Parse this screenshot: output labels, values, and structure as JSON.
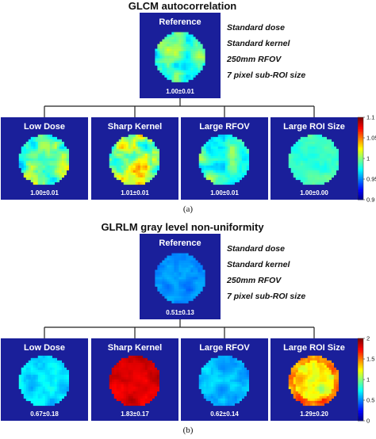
{
  "colors": {
    "panel_bg": "#1a1f9a",
    "connector": "#222222"
  },
  "figures": [
    {
      "title": "GLCM autocorrelation",
      "caption": "(a)",
      "reference": {
        "label": "Reference",
        "value": "1.00±0.01",
        "tone": 0.45,
        "variation": 0.18,
        "edge": 0.0
      },
      "conditions": [
        "Standard dose",
        "Standard kernel",
        "250mm RFOV",
        "7 pixel sub-ROI size"
      ],
      "panels": [
        {
          "label": "Low Dose",
          "value": "1.00±0.01",
          "tone": 0.47,
          "variation": 0.22,
          "edge": 0.0
        },
        {
          "label": "Sharp Kernel",
          "value": "1.01±0.01",
          "tone": 0.52,
          "variation": 0.28,
          "edge": 0.0
        },
        {
          "label": "Large RFOV",
          "value": "1.00±0.01",
          "tone": 0.44,
          "variation": 0.16,
          "edge": 0.0
        },
        {
          "label": "Large ROI Size",
          "value": "1.00±0.00",
          "tone": 0.43,
          "variation": 0.08,
          "edge": 0.0
        }
      ],
      "colorbar": {
        "min": 0.9,
        "max": 1.1,
        "ticks": [
          "1.1",
          "1.05",
          "1",
          "0.95",
          "0.9"
        ]
      }
    },
    {
      "title": "GLRLM gray level non-uniformity",
      "caption": "(b)",
      "reference": {
        "label": "Reference",
        "value": "0.51±0.13",
        "tone": 0.26,
        "variation": 0.07,
        "edge": 0.0
      },
      "conditions": [
        "Standard dose",
        "Standard kernel",
        "250mm RFOV",
        "7 pixel sub-ROI size"
      ],
      "panels": [
        {
          "label": "Low Dose",
          "value": "0.67±0.18",
          "tone": 0.34,
          "variation": 0.09,
          "edge": 0.0
        },
        {
          "label": "Sharp Kernel",
          "value": "1.83±0.17",
          "tone": 0.91,
          "variation": 0.06,
          "edge": 0.0
        },
        {
          "label": "Large RFOV",
          "value": "0.62±0.14",
          "tone": 0.3,
          "variation": 0.09,
          "edge": 0.0
        },
        {
          "label": "Large ROI Size",
          "value": "1.29±0.20",
          "tone": 0.62,
          "variation": 0.14,
          "edge": 0.12
        }
      ],
      "colorbar": {
        "min": 0,
        "max": 2,
        "ticks": [
          "2",
          "1.5",
          "1",
          "0.5",
          "0"
        ]
      }
    }
  ]
}
